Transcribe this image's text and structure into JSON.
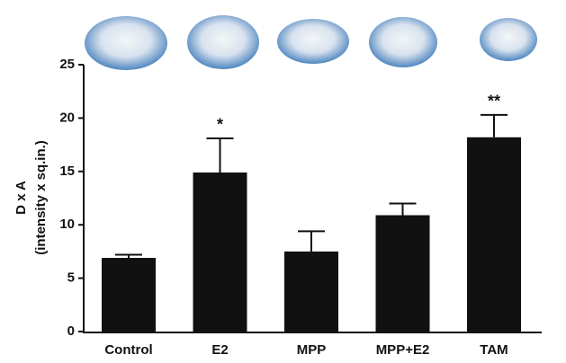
{
  "chart_data": {
    "type": "bar",
    "ylabel": [
      "D x A",
      "(intensity x sq.in.)"
    ],
    "categories": [
      "Control",
      "E2",
      "MPP",
      "MPP+E2",
      "TAM"
    ],
    "values": [
      6.9,
      14.9,
      7.5,
      10.9,
      18.2
    ],
    "errors": [
      0.3,
      3.2,
      1.9,
      1.1,
      2.1
    ],
    "annotations": [
      null,
      "*",
      null,
      null,
      "**"
    ],
    "color": "#111111",
    "ylim": [
      0,
      25
    ],
    "yticks": [
      0,
      5,
      10,
      15,
      20,
      25
    ],
    "grid": false
  }
}
